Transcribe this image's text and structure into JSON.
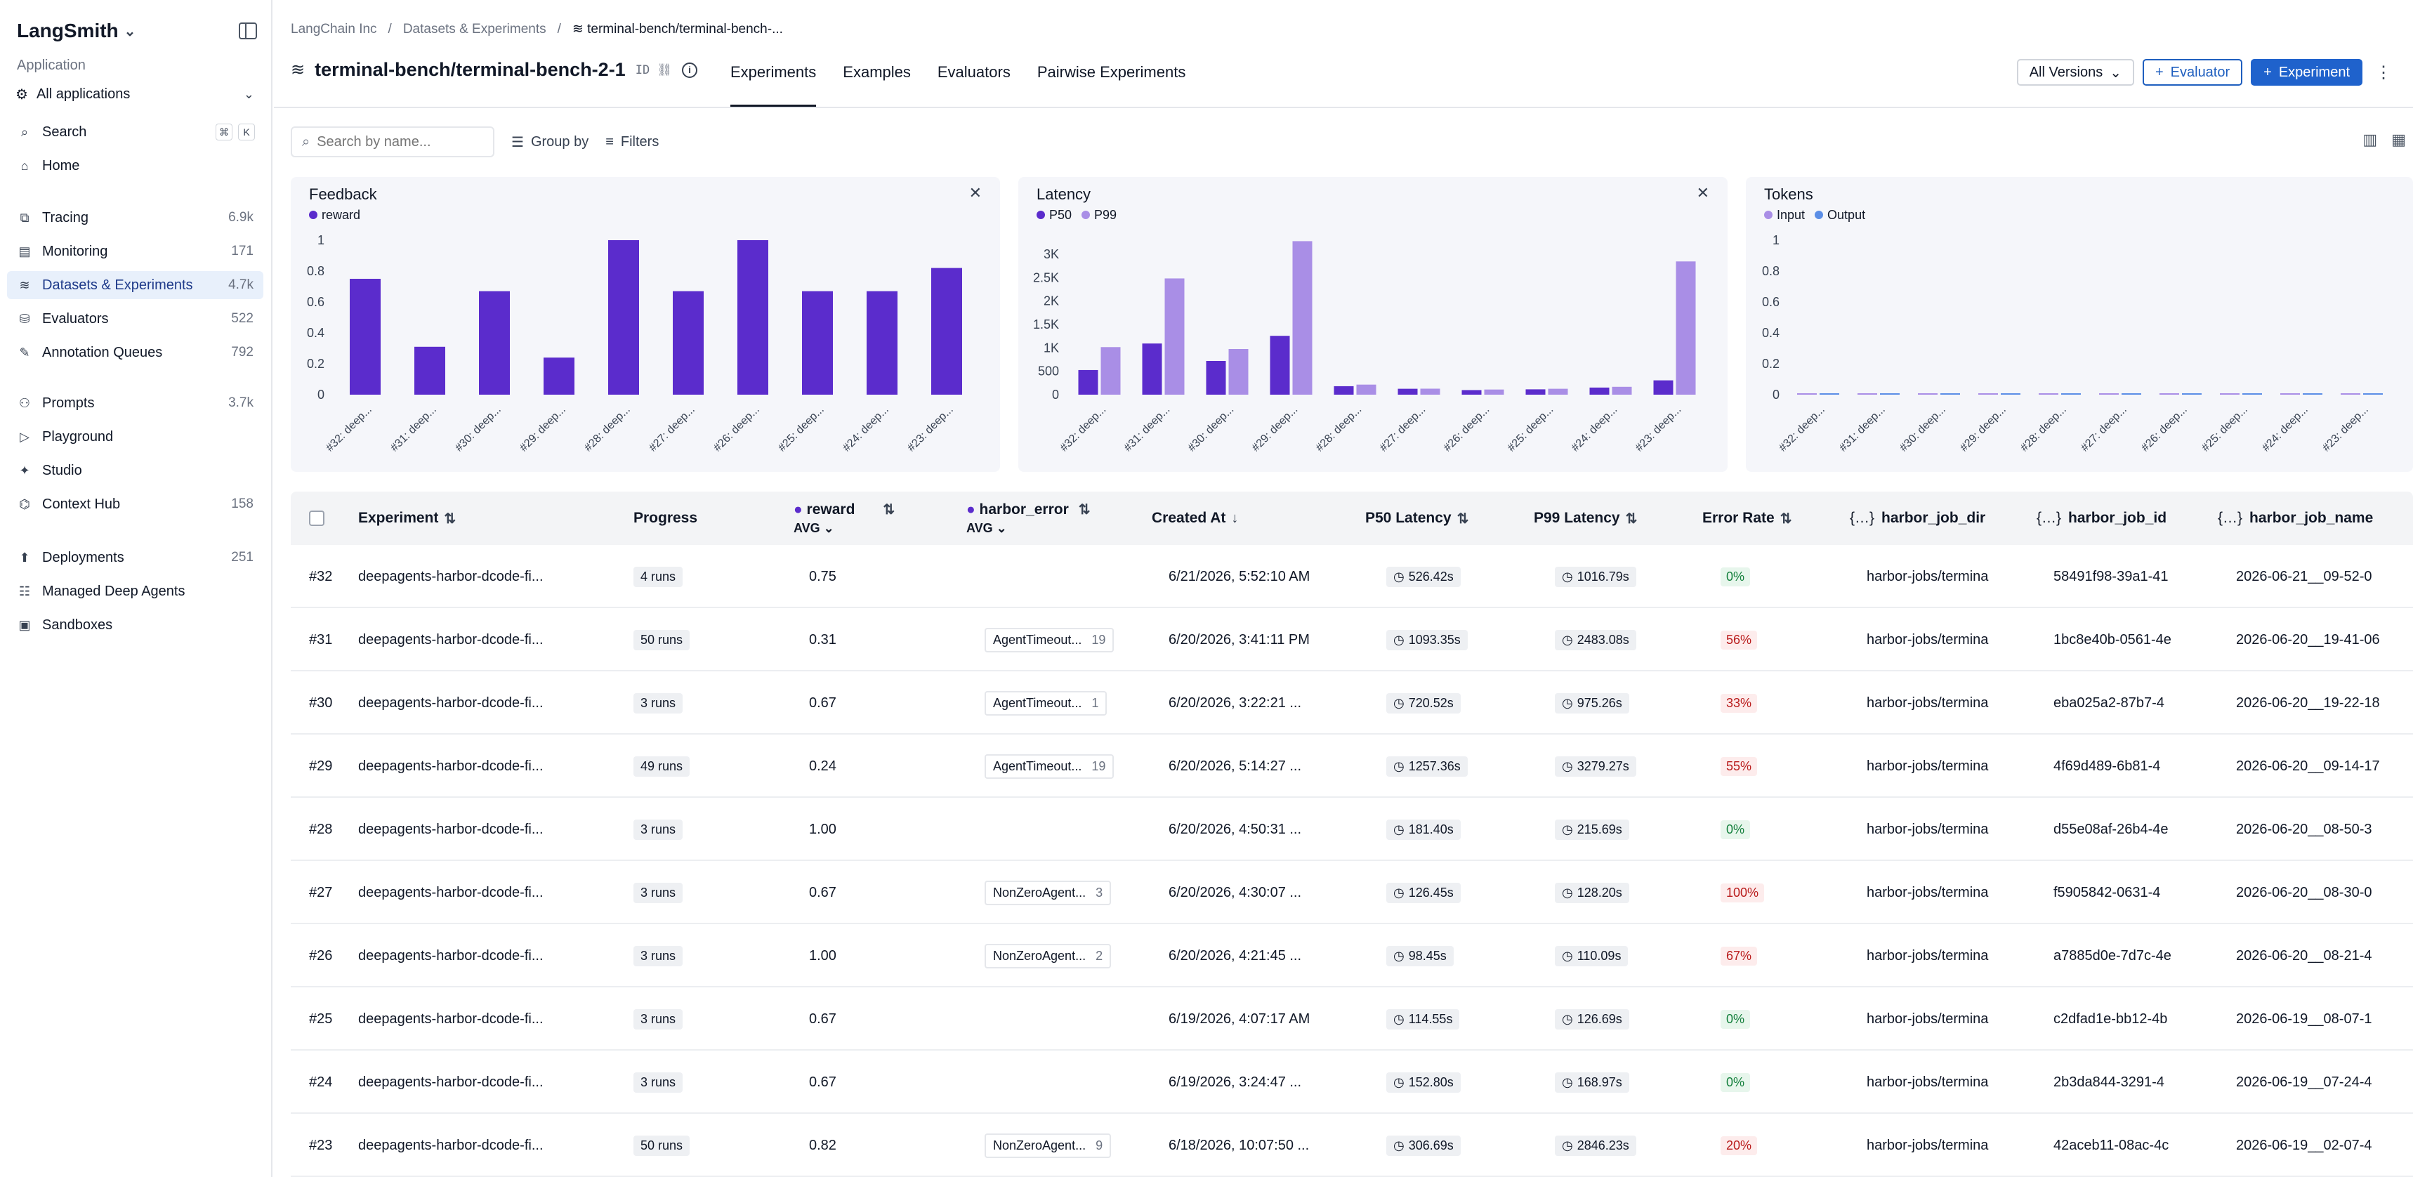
{
  "sidebar": {
    "logo": "LangSmith",
    "app_label": "Application",
    "app_select": "All applications",
    "search": "Search",
    "shortcut": [
      "⌘",
      "K"
    ],
    "items": [
      {
        "label": "Home",
        "count": "",
        "icon": "home-icon"
      },
      {
        "label": "Tracing",
        "count": "6.9k",
        "icon": "tracing-icon"
      },
      {
        "label": "Monitoring",
        "count": "171",
        "icon": "monitoring-icon"
      },
      {
        "label": "Datasets & Experiments",
        "count": "4.7k",
        "icon": "database-icon"
      },
      {
        "label": "Evaluators",
        "count": "522",
        "icon": "evaluators-icon"
      },
      {
        "label": "Annotation Queues",
        "count": "792",
        "icon": "annotation-icon"
      },
      {
        "label": "Prompts",
        "count": "3.7k",
        "icon": "prompts-icon"
      },
      {
        "label": "Playground",
        "count": "",
        "icon": "playground-icon"
      },
      {
        "label": "Studio",
        "count": "",
        "icon": "studio-icon"
      },
      {
        "label": "Context Hub",
        "count": "158",
        "icon": "context-hub-icon"
      },
      {
        "label": "Deployments",
        "count": "251",
        "icon": "deployments-icon"
      },
      {
        "label": "Managed Deep Agents",
        "count": "",
        "icon": "agents-icon"
      },
      {
        "label": "Sandboxes",
        "count": "",
        "icon": "sandboxes-icon"
      }
    ]
  },
  "header": {
    "crumbs": [
      "LangChain Inc",
      "/",
      "Datasets & Experiments",
      "/",
      "terminal-bench/terminal-bench-..."
    ],
    "title": "terminal-bench/terminal-bench-2-1",
    "id_label": "ID",
    "tabs": [
      "Experiments",
      "Examples",
      "Evaluators",
      "Pairwise Experiments"
    ],
    "versions": "All Versions",
    "evaluator_btn": "Evaluator",
    "experiment_btn": "Experiment"
  },
  "toolbar": {
    "search_placeholder": "Search by name...",
    "group_by": "Group by",
    "filters": "Filters"
  },
  "chart_data": [
    {
      "type": "bar",
      "title": "Feedback",
      "series": [
        {
          "name": "reward",
          "color": "#5b2ccc",
          "values": [
            0.75,
            0.31,
            0.67,
            0.24,
            1.0,
            0.67,
            1.0,
            0.67,
            0.67,
            0.82
          ]
        }
      ],
      "categories": [
        "#32: deep...",
        "#31: deep...",
        "#30: deep...",
        "#29: deep...",
        "#28: deep...",
        "#27: deep...",
        "#26: deep...",
        "#25: deep...",
        "#24: deep...",
        "#23: deep..."
      ],
      "ylim": [
        0,
        1
      ],
      "yticks": [
        "0",
        "0.2",
        "0.4",
        "0.6",
        "0.8",
        "1"
      ]
    },
    {
      "type": "bar",
      "title": "Latency",
      "series": [
        {
          "name": "P50",
          "color": "#5b2ccc",
          "values": [
            526,
            1093,
            720,
            1257,
            181,
            126,
            98,
            114,
            152,
            306
          ]
        },
        {
          "name": "P99",
          "color": "#a98ee6",
          "values": [
            1016,
            2483,
            975,
            3279,
            215,
            128,
            110,
            126,
            168,
            2846
          ]
        }
      ],
      "categories": [
        "#32: deep...",
        "#31: deep...",
        "#30: deep...",
        "#29: deep...",
        "#28: deep...",
        "#27: deep...",
        "#26: deep...",
        "#25: deep...",
        "#24: deep...",
        "#23: deep..."
      ],
      "ylim": [
        0,
        3300
      ],
      "yticks": [
        "0",
        "500",
        "1K",
        "1.5K",
        "2K",
        "2.5K",
        "3K"
      ]
    },
    {
      "type": "bar",
      "title": "Tokens",
      "series": [
        {
          "name": "Input",
          "color": "#a98ee6",
          "values": [
            0,
            0,
            0,
            0,
            0,
            0,
            0,
            0,
            0,
            0
          ]
        },
        {
          "name": "Output",
          "color": "#5b8ee6",
          "values": [
            0,
            0,
            0,
            0,
            0,
            0,
            0,
            0,
            0,
            0
          ]
        }
      ],
      "categories": [
        "#32: deep...",
        "#31: deep...",
        "#30: deep...",
        "#29: deep...",
        "#28: deep...",
        "#27: deep...",
        "#26: deep...",
        "#25: deep...",
        "#24: deep...",
        "#23: deep..."
      ],
      "ylim": [
        0,
        1
      ],
      "yticks": [
        "0",
        "0.2",
        "0.4",
        "0.6",
        "0.8",
        "1"
      ]
    }
  ],
  "table": {
    "columns": [
      "Experiment",
      "Progress",
      "reward",
      "AVG",
      "harbor_error",
      "AVG",
      "Created At",
      "P50 Latency",
      "P99 Latency",
      "Error Rate",
      "harbor_job_dir",
      "harbor_job_id",
      "harbor_job_name"
    ],
    "rows": [
      {
        "num": "#32",
        "name": "deepagents-harbor-dcode-fi...",
        "progress": "4 runs",
        "reward": "0.75",
        "err": "",
        "errn": "",
        "created": "6/21/2026, 5:52:10 AM",
        "p50": "526.42s",
        "p99": "1016.79s",
        "rate": "0%",
        "dir": "harbor-jobs/termina",
        "jid": "58491f98-39a1-41",
        "jname": "2026-06-21__09-52-0"
      },
      {
        "num": "#31",
        "name": "deepagents-harbor-dcode-fi...",
        "progress": "50 runs",
        "reward": "0.31",
        "err": "AgentTimeout...",
        "errn": "19",
        "created": "6/20/2026, 3:41:11 PM",
        "p50": "1093.35s",
        "p99": "2483.08s",
        "rate": "56%",
        "dir": "harbor-jobs/termina",
        "jid": "1bc8e40b-0561-4e",
        "jname": "2026-06-20__19-41-06"
      },
      {
        "num": "#30",
        "name": "deepagents-harbor-dcode-fi...",
        "progress": "3 runs",
        "reward": "0.67",
        "err": "AgentTimeout...",
        "errn": "1",
        "created": "6/20/2026, 3:22:21 ...",
        "p50": "720.52s",
        "p99": "975.26s",
        "rate": "33%",
        "dir": "harbor-jobs/termina",
        "jid": "eba025a2-87b7-4",
        "jname": "2026-06-20__19-22-18"
      },
      {
        "num": "#29",
        "name": "deepagents-harbor-dcode-fi...",
        "progress": "49 runs",
        "reward": "0.24",
        "err": "AgentTimeout...",
        "errn": "19",
        "created": "6/20/2026, 5:14:27 ...",
        "p50": "1257.36s",
        "p99": "3279.27s",
        "rate": "55%",
        "dir": "harbor-jobs/termina",
        "jid": "4f69d489-6b81-4",
        "jname": "2026-06-20__09-14-17"
      },
      {
        "num": "#28",
        "name": "deepagents-harbor-dcode-fi...",
        "progress": "3 runs",
        "reward": "1.00",
        "err": "",
        "errn": "",
        "created": "6/20/2026, 4:50:31 ...",
        "p50": "181.40s",
        "p99": "215.69s",
        "rate": "0%",
        "dir": "harbor-jobs/termina",
        "jid": "d55e08af-26b4-4e",
        "jname": "2026-06-20__08-50-3"
      },
      {
        "num": "#27",
        "name": "deepagents-harbor-dcode-fi...",
        "progress": "3 runs",
        "reward": "0.67",
        "err": "NonZeroAgent...",
        "errn": "3",
        "created": "6/20/2026, 4:30:07 ...",
        "p50": "126.45s",
        "p99": "128.20s",
        "rate": "100%",
        "dir": "harbor-jobs/termina",
        "jid": "f5905842-0631-4",
        "jname": "2026-06-20__08-30-0"
      },
      {
        "num": "#26",
        "name": "deepagents-harbor-dcode-fi...",
        "progress": "3 runs",
        "reward": "1.00",
        "err": "NonZeroAgent...",
        "errn": "2",
        "created": "6/20/2026, 4:21:45 ...",
        "p50": "98.45s",
        "p99": "110.09s",
        "rate": "67%",
        "dir": "harbor-jobs/termina",
        "jid": "a7885d0e-7d7c-4e",
        "jname": "2026-06-20__08-21-4"
      },
      {
        "num": "#25",
        "name": "deepagents-harbor-dcode-fi...",
        "progress": "3 runs",
        "reward": "0.67",
        "err": "",
        "errn": "",
        "created": "6/19/2026, 4:07:17 AM",
        "p50": "114.55s",
        "p99": "126.69s",
        "rate": "0%",
        "dir": "harbor-jobs/termina",
        "jid": "c2dfad1e-bb12-4b",
        "jname": "2026-06-19__08-07-1"
      },
      {
        "num": "#24",
        "name": "deepagents-harbor-dcode-fi...",
        "progress": "3 runs",
        "reward": "0.67",
        "err": "",
        "errn": "",
        "created": "6/19/2026, 3:24:47 ...",
        "p50": "152.80s",
        "p99": "168.97s",
        "rate": "0%",
        "dir": "harbor-jobs/termina",
        "jid": "2b3da844-3291-4",
        "jname": "2026-06-19__07-24-4"
      },
      {
        "num": "#23",
        "name": "deepagents-harbor-dcode-fi...",
        "progress": "50 runs",
        "reward": "0.82",
        "err": "NonZeroAgent...",
        "errn": "9",
        "created": "6/18/2026, 10:07:50 ...",
        "p50": "306.69s",
        "p99": "2846.23s",
        "rate": "20%",
        "dir": "harbor-jobs/termina",
        "jid": "42aceb11-08ac-4c",
        "jname": "2026-06-19__02-07-4"
      }
    ]
  },
  "colors": {
    "accent": "#1f62cc",
    "bar_dark": "#5b2ccc",
    "bar_light": "#a98ee6",
    "green": "#15803d",
    "red": "#b91c1c"
  }
}
